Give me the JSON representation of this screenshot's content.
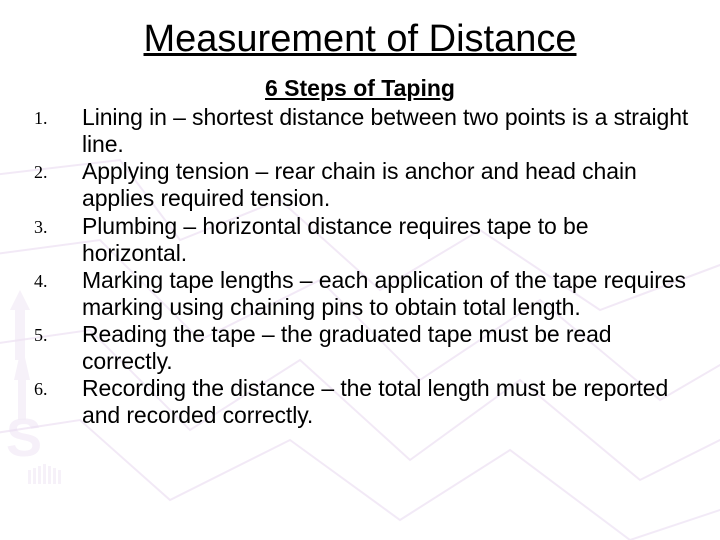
{
  "slide": {
    "title": "Measurement of Distance",
    "subtitle": "6 Steps of Taping",
    "title_fontsize": 38,
    "subtitle_fontsize": 23,
    "body_fontsize": 23,
    "number_fontsize": 18,
    "text_color": "#000000",
    "background_color": "#ffffff",
    "decoration_stroke": "#e8d8f0",
    "decoration_opacity": 0.55,
    "items": [
      {
        "n": "1.",
        "text": "Lining in – shortest distance between two points is a straight line."
      },
      {
        "n": "2.",
        "text": "Applying tension – rear chain is anchor and head chain applies required tension."
      },
      {
        "n": "3.",
        "text": "Plumbing – horizontal distance requires tape to be horizontal."
      },
      {
        "n": "4.",
        "text": "Marking tape lengths – each application of the tape requires marking using chaining pins to obtain total length."
      },
      {
        "n": "5.",
        "text": "Reading the tape – the graduated tape must be read correctly."
      },
      {
        "n": "6.",
        "text": "Recording the distance – the total length must be reported and recorded correctly."
      }
    ]
  }
}
